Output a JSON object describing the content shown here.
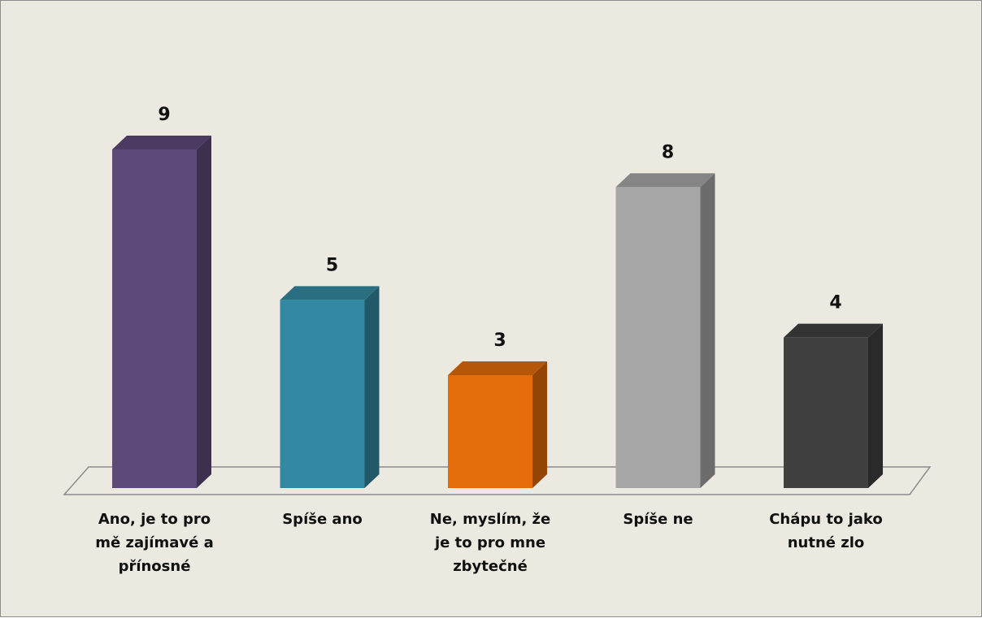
{
  "chart_data": {
    "type": "bar3d",
    "categories": [
      "Ano, je to pro mě zajímavé a přínosné",
      "Spíše ano",
      "Ne, myslím, že je to pro mne zbytečné",
      "Spíše ne",
      "Chápu to jako nutné zlo"
    ],
    "values": [
      9,
      5,
      3,
      8,
      4
    ],
    "colors": [
      "#5e4a7a",
      "#3389a1",
      "#e46c0a",
      "#a6a6a6",
      "#404040"
    ]
  }
}
